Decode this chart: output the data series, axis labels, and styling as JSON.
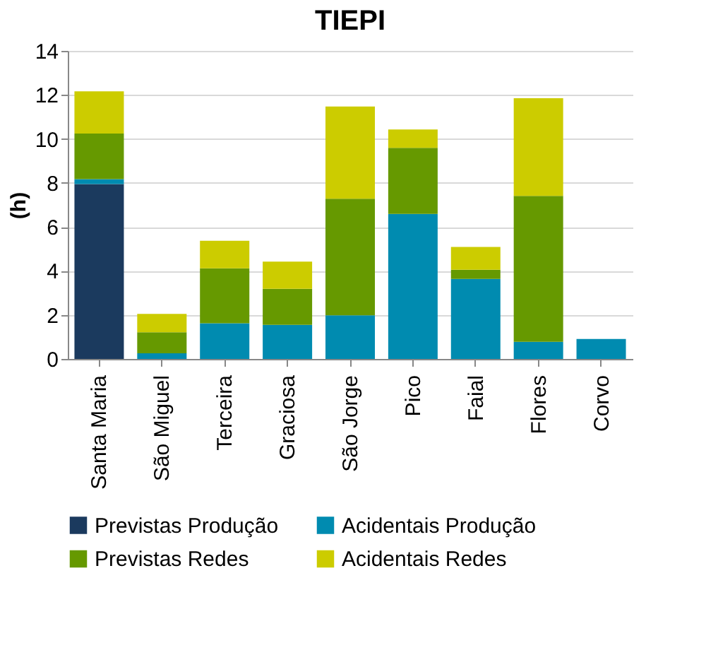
{
  "chart_data": {
    "type": "bar",
    "title": "TIEPI",
    "ylabel": "(h)",
    "stacked": true,
    "categories": [
      "Santa Maria",
      "São Miguel",
      "Terceira",
      "Graciosa",
      "São Jorge",
      "Pico",
      "Faial",
      "Flores",
      "Corvo"
    ],
    "series": [
      {
        "name": "Previstas Produção",
        "color": "#1b3a5e",
        "values": [
          7.95,
          0,
          0,
          0,
          0,
          0,
          0,
          0,
          0
        ]
      },
      {
        "name": "Acidentais Produção",
        "color": "#008bb0",
        "values": [
          0.22,
          0.26,
          1.62,
          1.55,
          1.98,
          6.59,
          3.64,
          0.78,
          0.91
        ]
      },
      {
        "name": "Previstas Redes",
        "color": "#669900",
        "values": [
          2.07,
          0.95,
          2.5,
          1.64,
          5.3,
          3.0,
          0.41,
          6.63,
          0
        ]
      },
      {
        "name": "Acidentais Redes",
        "color": "#cccc00",
        "values": [
          1.92,
          0.84,
          1.25,
          1.23,
          4.19,
          0.84,
          1.04,
          4.44,
          0
        ]
      }
    ],
    "ylim": [
      0,
      14
    ],
    "yticks": [
      0,
      2,
      4,
      6,
      8,
      10,
      12,
      14
    ],
    "grid": "y",
    "legend": "bottom"
  }
}
